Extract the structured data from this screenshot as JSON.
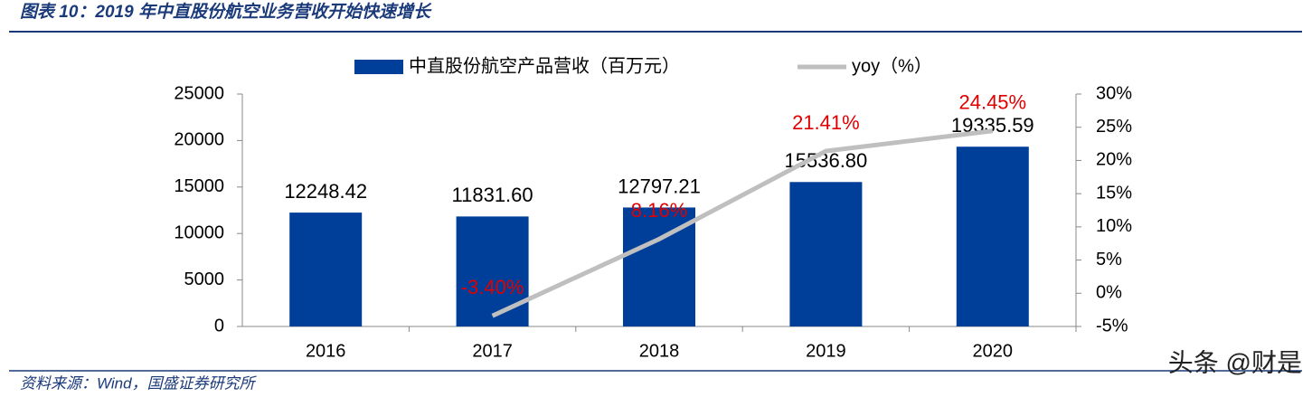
{
  "title": "图表 10：2019 年中直股份航空业务营收开始快速增长",
  "source": "资料来源：Wind，国盛证券研究所",
  "watermark": "头条 @财是",
  "chart_data": {
    "type": "bar",
    "categories": [
      "2016",
      "2017",
      "2018",
      "2019",
      "2020"
    ],
    "series": [
      {
        "name": "中直股份航空产品营收（百万元）",
        "type": "bar",
        "color": "#003f99",
        "values": [
          12248.42,
          11831.6,
          12797.21,
          15536.8,
          19335.59
        ],
        "value_labels": [
          "12248.42",
          "11831.60",
          "12797.21",
          "15536.80",
          "19335.59"
        ]
      },
      {
        "name": "yoy（%）",
        "type": "line",
        "axis": "y2",
        "color": "#bfbfbf",
        "label_color": "#e00000",
        "values": [
          null,
          -3.4,
          8.16,
          21.41,
          24.45
        ],
        "value_labels": [
          null,
          "-3.40%",
          "8.16%",
          "21.41%",
          "24.45%"
        ]
      }
    ],
    "ylim": [
      0,
      25000
    ],
    "yticks": [
      0,
      5000,
      10000,
      15000,
      20000,
      25000
    ],
    "y2lim": [
      -5,
      30
    ],
    "y2ticks": [
      {
        "value": -5,
        "label": "-5%"
      },
      {
        "value": 0,
        "label": "0%"
      },
      {
        "value": 5,
        "label": "5%"
      },
      {
        "value": 10,
        "label": "10%"
      },
      {
        "value": 15,
        "label": "15%"
      },
      {
        "value": 20,
        "label": "20%"
      },
      {
        "value": 25,
        "label": "25%"
      },
      {
        "value": 30,
        "label": "30%"
      }
    ],
    "grid": false
  }
}
